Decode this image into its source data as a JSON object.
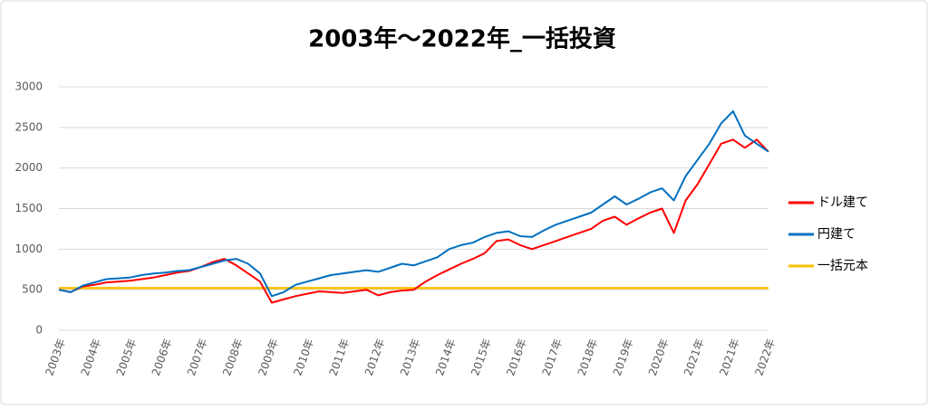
{
  "chart_data": {
    "type": "line",
    "title": "2003年～2022年_一括投資",
    "categories": [
      "2003年",
      null,
      null,
      "2004年",
      null,
      null,
      "2005年",
      null,
      null,
      "2006年",
      null,
      null,
      "2007年",
      null,
      null,
      "2008年",
      null,
      null,
      "2009年",
      null,
      null,
      "2010年",
      null,
      null,
      "2011年",
      null,
      null,
      "2012年",
      null,
      null,
      "2013年",
      null,
      null,
      "2014年",
      null,
      null,
      "2015年",
      null,
      null,
      "2016年",
      null,
      null,
      "2017年",
      null,
      null,
      "2018年",
      null,
      null,
      "2019年",
      null,
      null,
      "2020年",
      null,
      null,
      "2021年",
      null,
      null,
      "2021年",
      null,
      null,
      "2022年"
    ],
    "series": [
      {
        "name": "ドル建て",
        "color": "#ff0000",
        "values": [
          500,
          470,
          540,
          560,
          590,
          600,
          610,
          630,
          650,
          680,
          710,
          730,
          780,
          840,
          880,
          800,
          700,
          600,
          340,
          380,
          420,
          450,
          480,
          470,
          460,
          480,
          500,
          430,
          470,
          490,
          500,
          600,
          680,
          750,
          820,
          880,
          950,
          1100,
          1120,
          1050,
          1000,
          1050,
          1100,
          1150,
          1200,
          1250,
          1350,
          1400,
          1300,
          1380,
          1450,
          1500,
          1200,
          1600,
          1800,
          2050,
          2300,
          2350,
          2250,
          2350,
          2200
        ]
      },
      {
        "name": "円建て",
        "color": "#0070c0",
        "values": [
          500,
          470,
          550,
          590,
          630,
          640,
          650,
          680,
          700,
          710,
          730,
          740,
          780,
          820,
          860,
          880,
          820,
          700,
          420,
          470,
          560,
          600,
          640,
          680,
          700,
          720,
          740,
          720,
          770,
          820,
          800,
          850,
          900,
          1000,
          1050,
          1080,
          1150,
          1200,
          1220,
          1160,
          1150,
          1230,
          1300,
          1350,
          1400,
          1450,
          1550,
          1650,
          1550,
          1620,
          1700,
          1750,
          1600,
          1900,
          2100,
          2300,
          2550,
          2700,
          2400,
          2300,
          2200
        ]
      },
      {
        "name": "一括元本",
        "color": "#ffc000",
        "values": [
          520,
          520,
          520,
          520,
          520,
          520,
          520,
          520,
          520,
          520,
          520,
          520,
          520,
          520,
          520,
          520,
          520,
          520,
          520,
          520,
          520,
          520,
          520,
          520,
          520,
          520,
          520,
          520,
          520,
          520,
          520,
          520,
          520,
          520,
          520,
          520,
          520,
          520,
          520,
          520,
          520,
          520,
          520,
          520,
          520,
          520,
          520,
          520,
          520,
          520,
          520,
          520,
          520,
          520,
          520,
          520,
          520,
          520,
          520,
          520,
          520
        ]
      }
    ],
    "ylim": [
      0,
      3000
    ],
    "yticks": [
      0,
      500,
      1000,
      1500,
      2000,
      2500,
      3000
    ],
    "grid": true,
    "legend": "right"
  }
}
